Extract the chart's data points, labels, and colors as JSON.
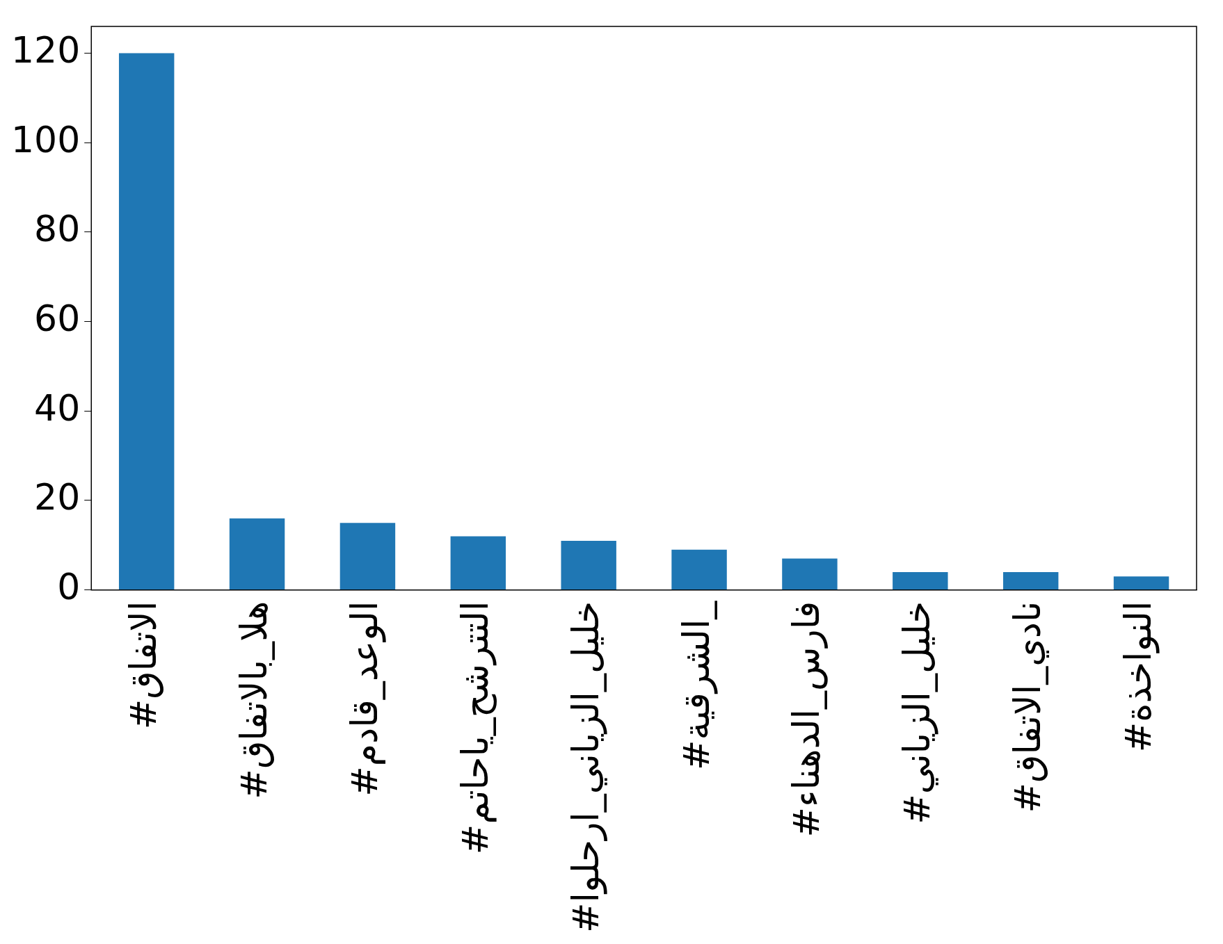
{
  "chart_data": {
    "type": "bar",
    "categories": [
      "#الاتفاق",
      "#هلا_بالاتفاق",
      "#الوعد_قادم",
      "#التترشح_ياحاتم",
      "#خليل_الزياني_ارحلوا",
      "#الشرقية_",
      "#فارس_الدهناء",
      "#خليل_الزياني",
      "#نادي_الاتفاق",
      "#النواخذة"
    ],
    "values": [
      120,
      16,
      15,
      12,
      11,
      9,
      7,
      4,
      4,
      3
    ],
    "color": "#1f77b4",
    "ylim": [
      0,
      126
    ],
    "yticks": [
      0,
      20,
      40,
      60,
      80,
      100,
      120
    ],
    "grid": false,
    "legend": false
  }
}
